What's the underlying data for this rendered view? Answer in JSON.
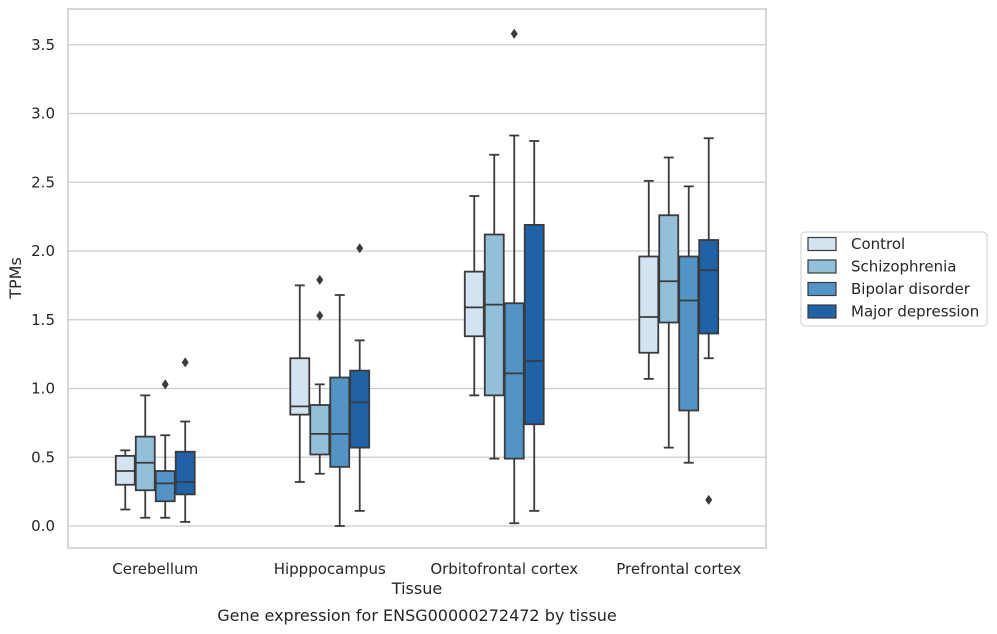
{
  "chart_data": {
    "type": "boxplot",
    "caption": "Gene expression for ENSG00000272472 by tissue",
    "xlabel": "Tissue",
    "ylabel": "TPMs",
    "ylim": [
      -0.16,
      3.76
    ],
    "yticks": [
      "0.0",
      "0.5",
      "1.0",
      "1.5",
      "2.0",
      "2.5",
      "3.0",
      "3.5"
    ],
    "grid": true,
    "legend_position": "right",
    "categories": [
      "Cerebellum",
      "Hipppocampus",
      "Orbitofrontal cortex",
      "Prefrontal cortex"
    ],
    "series": [
      {
        "name": "Control",
        "color": "#d4e3f2",
        "boxes": [
          {
            "whislo": 0.12,
            "q1": 0.3,
            "med": 0.4,
            "q3": 0.51,
            "whishi": 0.55,
            "fliers": []
          },
          {
            "whislo": 0.32,
            "q1": 0.81,
            "med": 0.87,
            "q3": 1.22,
            "whishi": 1.75,
            "fliers": []
          },
          {
            "whislo": 0.95,
            "q1": 1.38,
            "med": 1.59,
            "q3": 1.85,
            "whishi": 2.4,
            "fliers": []
          },
          {
            "whislo": 1.07,
            "q1": 1.26,
            "med": 1.52,
            "q3": 1.96,
            "whishi": 2.51,
            "fliers": []
          }
        ]
      },
      {
        "name": "Schizophrenia",
        "color": "#93bfdb",
        "boxes": [
          {
            "whislo": 0.06,
            "q1": 0.26,
            "med": 0.46,
            "q3": 0.65,
            "whishi": 0.95,
            "fliers": []
          },
          {
            "whislo": 0.38,
            "q1": 0.52,
            "med": 0.67,
            "q3": 0.88,
            "whishi": 1.03,
            "fliers": [
              1.53,
              1.79
            ]
          },
          {
            "whislo": 0.49,
            "q1": 0.95,
            "med": 1.61,
            "q3": 2.12,
            "whishi": 2.7,
            "fliers": []
          },
          {
            "whislo": 0.57,
            "q1": 1.48,
            "med": 1.78,
            "q3": 2.26,
            "whishi": 2.68,
            "fliers": []
          }
        ]
      },
      {
        "name": "Bipolar disorder",
        "color": "#5394c6",
        "boxes": [
          {
            "whislo": 0.06,
            "q1": 0.18,
            "med": 0.31,
            "q3": 0.4,
            "whishi": 0.66,
            "fliers": [
              1.03
            ]
          },
          {
            "whislo": 0.0,
            "q1": 0.43,
            "med": 0.67,
            "q3": 1.08,
            "whishi": 1.68,
            "fliers": []
          },
          {
            "whislo": 0.02,
            "q1": 0.49,
            "med": 1.11,
            "q3": 1.62,
            "whishi": 2.84,
            "fliers": [
              3.58
            ]
          },
          {
            "whislo": 0.46,
            "q1": 0.84,
            "med": 1.64,
            "q3": 1.96,
            "whishi": 2.47,
            "fliers": []
          }
        ]
      },
      {
        "name": "Major depression",
        "color": "#1f62a8",
        "boxes": [
          {
            "whislo": 0.03,
            "q1": 0.23,
            "med": 0.32,
            "q3": 0.54,
            "whishi": 0.76,
            "fliers": [
              1.19
            ]
          },
          {
            "whislo": 0.11,
            "q1": 0.57,
            "med": 0.9,
            "q3": 1.13,
            "whishi": 1.35,
            "fliers": [
              2.02
            ]
          },
          {
            "whislo": 0.11,
            "q1": 0.74,
            "med": 1.2,
            "q3": 2.19,
            "whishi": 2.8,
            "fliers": []
          },
          {
            "whislo": 1.22,
            "q1": 1.4,
            "med": 1.86,
            "q3": 2.08,
            "whishi": 2.82,
            "fliers": [
              0.19
            ]
          }
        ]
      }
    ]
  }
}
